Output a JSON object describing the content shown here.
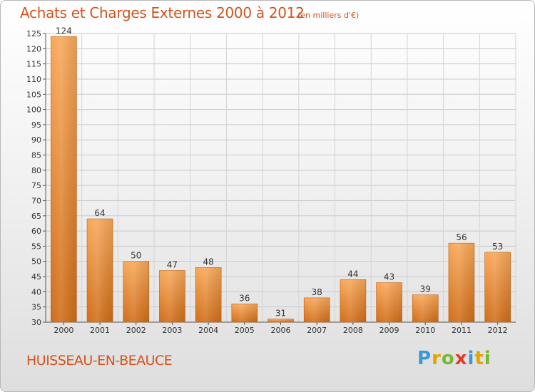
{
  "header": {
    "title": "Achats et Charges Externes 2000 à 2012",
    "subtitle": "(en milliers d'€)"
  },
  "footer": {
    "commune": "HUISSEAU-EN-BEAUCE",
    "logo_text": "Proxiti"
  },
  "colors": {
    "bar_light": "#f7a451",
    "bar_dark": "#d3701a",
    "title": "#d2541e",
    "grid": "#c8c8c8"
  },
  "chart_data": {
    "type": "bar",
    "title": "Achats et Charges Externes 2000 à 2012",
    "subtitle": "(en milliers d'€)",
    "categories": [
      "2000",
      "2001",
      "2002",
      "2003",
      "2004",
      "2005",
      "2006",
      "2007",
      "2008",
      "2009",
      "2010",
      "2011",
      "2012"
    ],
    "values": [
      124,
      64,
      50,
      47,
      48,
      36,
      31,
      38,
      44,
      43,
      39,
      56,
      53
    ],
    "xlabel": "",
    "ylabel": "",
    "ylim": [
      30,
      125
    ],
    "yticks": [
      30,
      35,
      40,
      45,
      50,
      55,
      60,
      65,
      70,
      75,
      80,
      85,
      90,
      95,
      100,
      105,
      110,
      115,
      120,
      125
    ],
    "grid": true,
    "legend": "none"
  }
}
